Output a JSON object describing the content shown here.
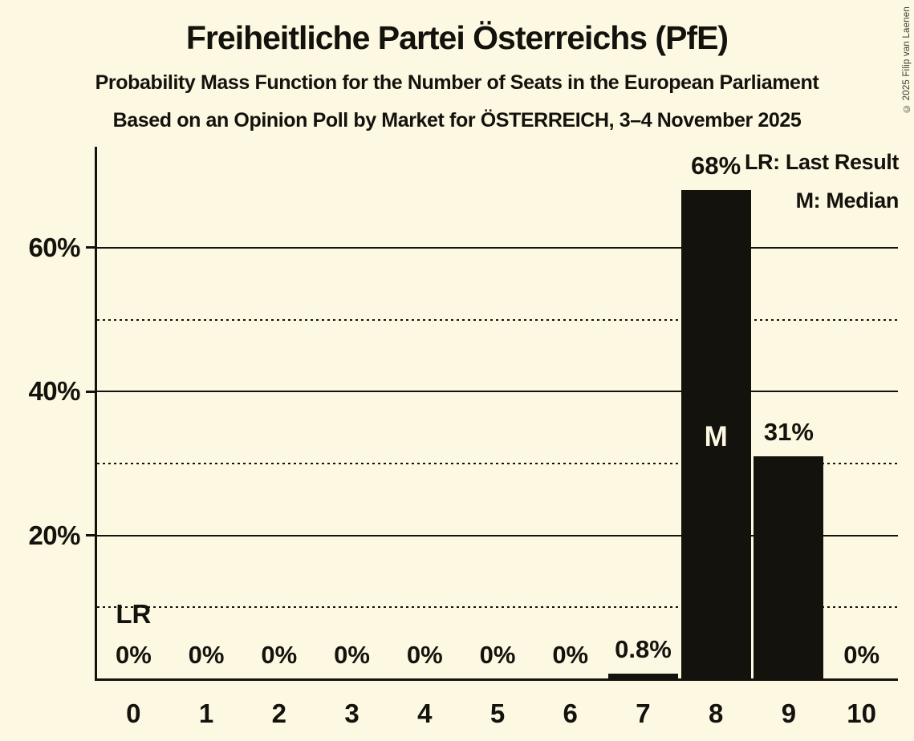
{
  "copyright": "© 2025 Filip van Laenen",
  "colors": {
    "background": "#fdf8e2",
    "bar": "#14120c",
    "ink": "#14120c",
    "median_label_on_bar": "#fdf8e2"
  },
  "chart_data": {
    "type": "bar",
    "title": "Freiheitliche Partei Österreichs (PfE)",
    "subtitle": "Probability Mass Function for the Number of Seats in the European Parliament",
    "caption": "Based on an Opinion Poll by Market for ÖSTERREICH, 3–4 November 2025",
    "xlabel": "",
    "ylabel": "",
    "categories": [
      "0",
      "1",
      "2",
      "3",
      "4",
      "5",
      "6",
      "7",
      "8",
      "9",
      "10"
    ],
    "values": [
      0,
      0,
      0,
      0,
      0,
      0,
      0,
      0.8,
      68,
      31,
      0
    ],
    "value_labels": [
      "0%",
      "0%",
      "0%",
      "0%",
      "0%",
      "0%",
      "0%",
      "0.8%",
      "68%",
      "31%",
      "0%"
    ],
    "ylim": [
      0,
      74
    ],
    "yticks": [
      {
        "value": 20,
        "label": "20%"
      },
      {
        "value": 40,
        "label": "40%"
      },
      {
        "value": 60,
        "label": "60%"
      }
    ],
    "solid_gridlines": [
      20,
      40,
      60
    ],
    "dotted_gridlines": [
      10,
      30,
      50
    ],
    "grid": true,
    "legend_position": "top-right",
    "legend": [
      "LR: Last Result",
      "M: Median"
    ],
    "annotations": [
      {
        "text": "LR",
        "type": "last-result",
        "seat": 0
      },
      {
        "text": "M",
        "type": "median",
        "seat": 8
      }
    ]
  }
}
